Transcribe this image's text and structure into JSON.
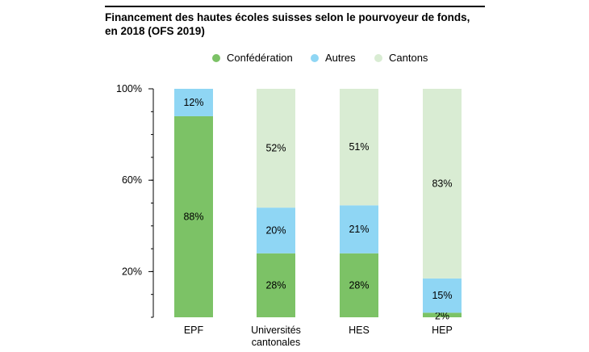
{
  "chart_data": {
    "type": "bar",
    "stacked": true,
    "title": "Financement des hautes écoles suisses selon le pourvoyeur de fonds, en 2018 (OFS 2019)",
    "title_lines": [
      "Financement des hautes écoles suisses selon le pourvoyeur de fonds,",
      "en 2018 (OFS 2019)"
    ],
    "categories": [
      [
        "EPF"
      ],
      [
        "Universités",
        "cantonales"
      ],
      [
        "HES"
      ],
      [
        "HEP"
      ]
    ],
    "series": [
      {
        "name": "Confédération",
        "color": "#7cc266",
        "values": [
          88,
          28,
          28,
          2
        ],
        "labels": [
          "88%",
          "28%",
          "28%",
          "2%"
        ]
      },
      {
        "name": "Autres",
        "color": "#8fd6f4",
        "values": [
          12,
          20,
          21,
          15
        ],
        "labels": [
          "12%",
          "20%",
          "21%",
          "15%"
        ]
      },
      {
        "name": "Cantons",
        "color": "#d9ecd3",
        "values": [
          0,
          52,
          51,
          83
        ],
        "labels": [
          "",
          "52%",
          "51%",
          "83%"
        ]
      }
    ],
    "legend_order": [
      0,
      1,
      2
    ],
    "legend_position": "top",
    "ylim": [
      0,
      100
    ],
    "yticks": [
      {
        "value": 20,
        "label": "20%"
      },
      {
        "value": 60,
        "label": "60%"
      },
      {
        "value": 100,
        "label": "100%"
      }
    ],
    "xlabel": "",
    "ylabel": "",
    "grid": false
  }
}
